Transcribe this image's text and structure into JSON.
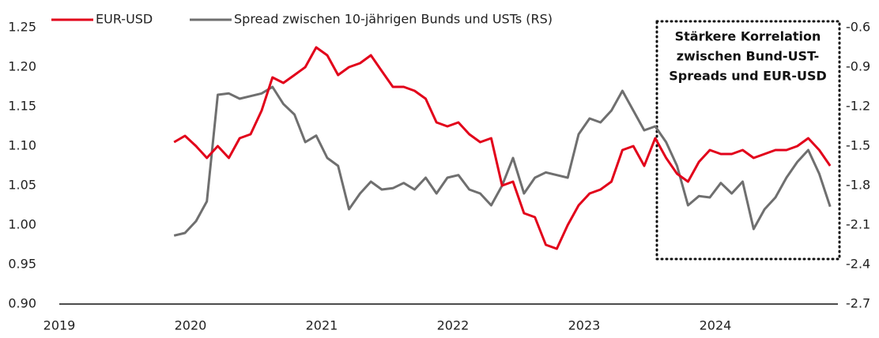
{
  "chart_data": {
    "type": "line",
    "x": [
      2019.875,
      2019.958,
      2020.042,
      2020.125,
      2020.208,
      2020.292,
      2020.375,
      2020.458,
      2020.542,
      2020.625,
      2020.708,
      2020.792,
      2020.875,
      2020.958,
      2021.042,
      2021.125,
      2021.208,
      2021.292,
      2021.375,
      2021.458,
      2021.542,
      2021.625,
      2021.708,
      2021.792,
      2021.875,
      2021.958,
      2022.042,
      2022.125,
      2022.208,
      2022.292,
      2022.375,
      2022.458,
      2022.542,
      2022.625,
      2022.708,
      2022.792,
      2022.875,
      2022.958,
      2023.042,
      2023.125,
      2023.208,
      2023.292,
      2023.375,
      2023.458,
      2023.542,
      2023.625,
      2023.708,
      2023.792,
      2023.875,
      2023.958,
      2024.042,
      2024.125,
      2024.208,
      2024.292,
      2024.375,
      2024.458,
      2024.542,
      2024.625,
      2024.708,
      2024.792,
      2024.875
    ],
    "series": [
      {
        "name": "EUR-USD",
        "color": "#e2001a",
        "axis": "y",
        "values": [
          1.105,
          1.113,
          1.1,
          1.085,
          1.1,
          1.085,
          1.11,
          1.115,
          1.145,
          1.187,
          1.18,
          1.19,
          1.2,
          1.225,
          1.215,
          1.19,
          1.2,
          1.205,
          1.215,
          1.195,
          1.175,
          1.175,
          1.17,
          1.16,
          1.13,
          1.125,
          1.13,
          1.115,
          1.105,
          1.11,
          1.05,
          1.055,
          1.015,
          1.01,
          0.975,
          0.97,
          1.0,
          1.025,
          1.04,
          1.045,
          1.055,
          1.095,
          1.1,
          1.075,
          1.11,
          1.085,
          1.065,
          1.055,
          1.08,
          1.095,
          1.09,
          1.09,
          1.095,
          1.085,
          1.09,
          1.095,
          1.095,
          1.1,
          1.11,
          1.095,
          1.075
        ]
      },
      {
        "name": "Spread zwischen 10-jährigen Bunds und USTs (RS)",
        "color": "#6f6f6f",
        "axis": "y2",
        "values": [
          -2.18,
          -2.16,
          -2.07,
          -1.92,
          -1.11,
          -1.1,
          -1.14,
          -1.12,
          -1.1,
          -1.05,
          -1.18,
          -1.26,
          -1.47,
          -1.42,
          -1.59,
          -1.65,
          -1.98,
          -1.86,
          -1.77,
          -1.83,
          -1.82,
          -1.78,
          -1.83,
          -1.74,
          -1.86,
          -1.74,
          -1.72,
          -1.83,
          -1.86,
          -1.95,
          -1.8,
          -1.59,
          -1.86,
          -1.74,
          -1.7,
          -1.72,
          -1.74,
          -1.41,
          -1.29,
          -1.32,
          -1.23,
          -1.08,
          -1.23,
          -1.38,
          -1.35,
          -1.47,
          -1.65,
          -1.95,
          -1.88,
          -1.89,
          -1.78,
          -1.86,
          -1.77,
          -2.13,
          -1.98,
          -1.89,
          -1.74,
          -1.62,
          -1.53,
          -1.71,
          -1.96
        ]
      }
    ],
    "xlim": [
      2019,
      2024.934
    ],
    "xticks": [
      2019,
      2020,
      2021,
      2022,
      2023,
      2024
    ],
    "ylim": [
      0.9,
      1.25
    ],
    "yticks": [
      {
        "value": 0.9,
        "label": "0.90"
      },
      0.95,
      {
        "value": 1.0,
        "label": "1.00"
      },
      1.05,
      {
        "value": 1.1,
        "label": "1.10"
      },
      1.15,
      {
        "value": 1.2,
        "label": "1.20"
      },
      1.25
    ],
    "y2lim": [
      -2.7,
      -0.6
    ],
    "y2ticks": [
      -2.7,
      -2.4,
      -2.1,
      -1.8,
      -1.5,
      -1.2,
      -0.9,
      -0.6
    ],
    "legend": "top-left",
    "annotation": [
      "Stärkere Korrelation",
      "zwischen Bund-UST-",
      "Spreads und EUR-USD"
    ]
  }
}
